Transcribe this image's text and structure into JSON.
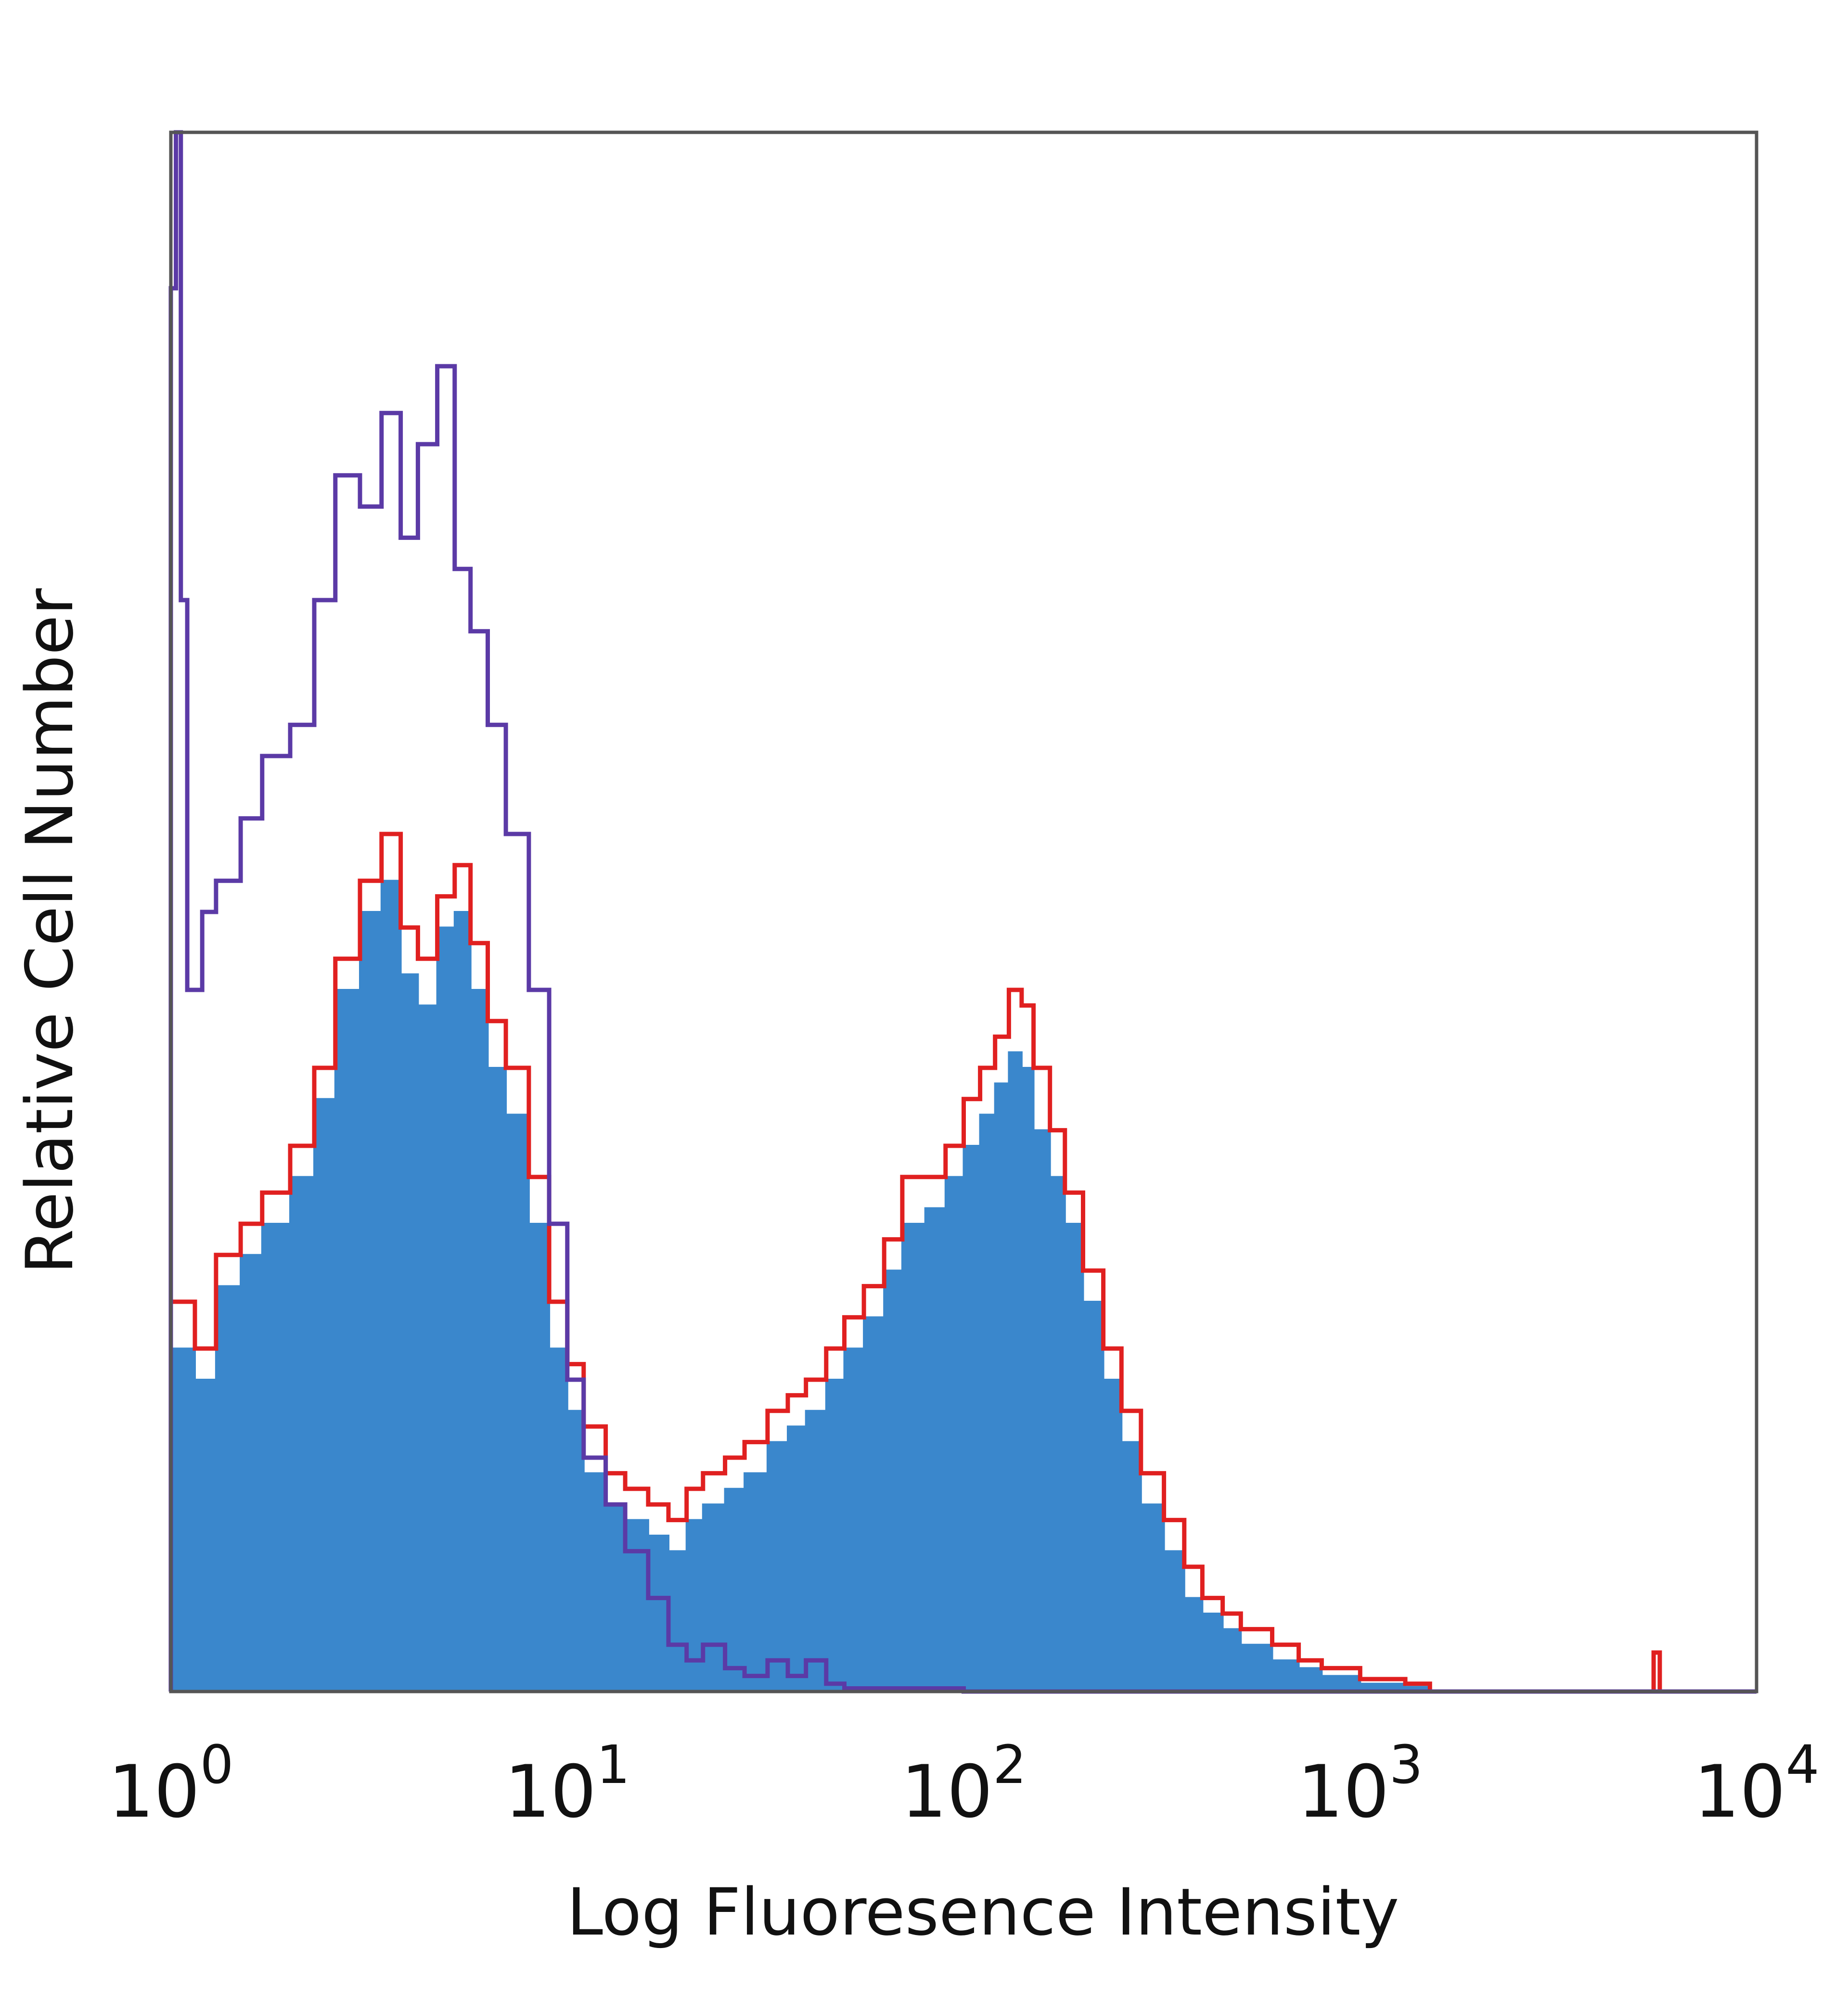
{
  "chart_data": {
    "type": "histogram",
    "title": "",
    "xlabel": "Log Fluoresence Intensity",
    "ylabel": "Relative Cell Number",
    "x_scale": "log",
    "xlim": [
      1,
      10000
    ],
    "ylim": [
      0,
      100
    ],
    "x_tick_labels": [
      {
        "base": "10",
        "exp": "0",
        "value": 1
      },
      {
        "base": "10",
        "exp": "1",
        "value": 10
      },
      {
        "base": "10",
        "exp": "2",
        "value": 100
      },
      {
        "base": "10",
        "exp": "3",
        "value": 1000
      },
      {
        "base": "10",
        "exp": "4",
        "value": 10000
      }
    ],
    "grid": false,
    "legend": "none",
    "series": [
      {
        "color": "#3a87cc",
        "style": "filled",
        "x": [
          1,
          1.15,
          1.3,
          1.5,
          1.7,
          2.0,
          2.3,
          2.6,
          3.0,
          3.4,
          3.8,
          4.2,
          4.7,
          5.2,
          5.7,
          6.3,
          7.0,
          8.0,
          9.0,
          10,
          11,
          12.5,
          14,
          16,
          18,
          20,
          22,
          25,
          28,
          32,
          36,
          40,
          45,
          50,
          56,
          63,
          70,
          80,
          90,
          100,
          110,
          120,
          130,
          140,
          150,
          165,
          180,
          200,
          225,
          250,
          280,
          320,
          360,
          400,
          450,
          500,
          600,
          700,
          800,
          1000,
          1300,
          1500,
          3000,
          6000,
          10000
        ],
        "y": [
          22,
          20,
          26,
          28,
          30,
          33,
          38,
          45,
          50,
          52,
          46,
          44,
          49,
          50,
          45,
          40,
          37,
          30,
          22,
          18,
          14,
          12,
          11,
          10,
          9,
          11,
          12,
          13,
          14,
          16,
          17,
          18,
          20,
          22,
          24,
          27,
          30,
          31,
          33,
          35,
          37,
          39,
          41,
          40,
          36,
          33,
          30,
          25,
          20,
          16,
          12,
          9,
          6,
          5,
          4,
          3,
          2,
          1.5,
          1,
          0.5,
          0.3,
          0,
          0,
          0,
          0
        ]
      },
      {
        "color": "#e02020",
        "style": "line",
        "x": [
          1,
          1.15,
          1.3,
          1.5,
          1.7,
          2.0,
          2.3,
          2.6,
          3.0,
          3.4,
          3.8,
          4.2,
          4.7,
          5.2,
          5.7,
          6.3,
          7.0,
          8.0,
          9.0,
          10,
          11,
          12.5,
          14,
          16,
          18,
          20,
          22,
          25,
          28,
          32,
          36,
          40,
          45,
          50,
          56,
          63,
          70,
          80,
          90,
          100,
          110,
          120,
          130,
          140,
          150,
          165,
          180,
          200,
          225,
          250,
          280,
          320,
          360,
          400,
          450,
          500,
          600,
          700,
          800,
          1000,
          1300,
          1500,
          3000,
          5500,
          5700,
          6000,
          10000
        ],
        "y": [
          25,
          22,
          28,
          30,
          32,
          35,
          40,
          47,
          52,
          55,
          49,
          47,
          51,
          53,
          48,
          43,
          40,
          33,
          25,
          21,
          17,
          14,
          13,
          12,
          11,
          13,
          14,
          15,
          16,
          18,
          19,
          20,
          22,
          24,
          26,
          29,
          33,
          33,
          35,
          38,
          40,
          42,
          45,
          44,
          40,
          36,
          32,
          27,
          22,
          18,
          14,
          11,
          8,
          6,
          5,
          4,
          3,
          2,
          1.5,
          0.8,
          0.5,
          0,
          0,
          2.5,
          0,
          0,
          0
        ]
      },
      {
        "color": "#5b3aa6",
        "style": "line",
        "x": [
          1,
          1.03,
          1.06,
          1.1,
          1.2,
          1.3,
          1.5,
          1.7,
          2.0,
          2.3,
          2.6,
          3.0,
          3.4,
          3.8,
          4.2,
          4.7,
          5.2,
          5.7,
          6.3,
          7.0,
          8.0,
          9.0,
          10,
          11,
          12.5,
          14,
          16,
          18,
          20,
          22,
          25,
          28,
          32,
          36,
          40,
          45,
          50,
          100,
          1000,
          10000
        ],
        "y": [
          90,
          100,
          70,
          45,
          50,
          52,
          56,
          60,
          62,
          70,
          78,
          76,
          82,
          74,
          80,
          85,
          72,
          68,
          62,
          55,
          45,
          30,
          20,
          15,
          12,
          9,
          6,
          3,
          2,
          3,
          1.5,
          1,
          2,
          1,
          2,
          0.5,
          0.2,
          0,
          0,
          0
        ]
      }
    ]
  }
}
